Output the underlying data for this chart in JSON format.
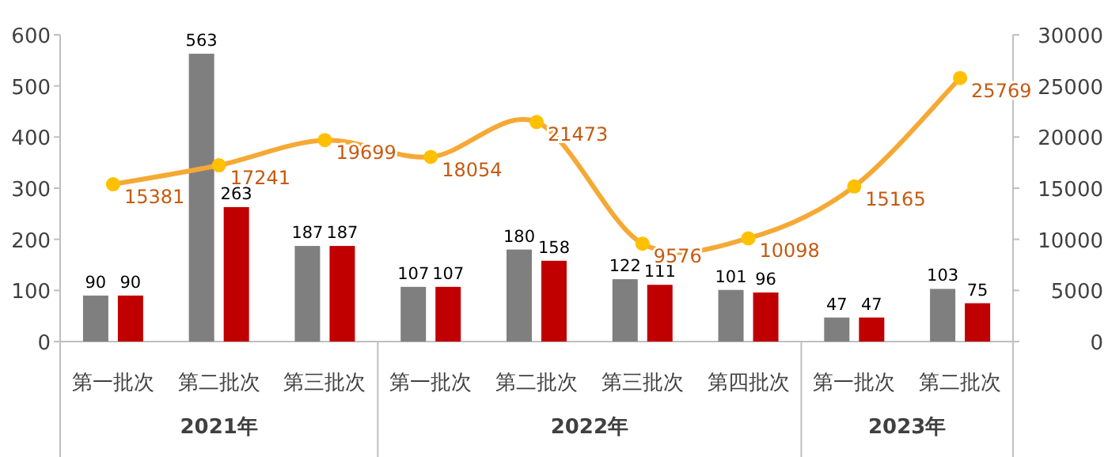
{
  "chart_data": {
    "type": "bar",
    "categories": [
      "第一批次",
      "第二批次",
      "第三批次",
      "第一批次",
      "第二批次",
      "第三批次",
      "第四批次",
      "第一批次",
      "第二批次"
    ],
    "series": [
      {
        "color": "#7f7f7f",
        "values": [
          90,
          563,
          187,
          107,
          180,
          122,
          101,
          47,
          103
        ]
      },
      {
        "color": "#c00000",
        "values": [
          90,
          263,
          187,
          107,
          158,
          111,
          96,
          47,
          75
        ]
      },
      {
        "type": "line",
        "axis": "y2",
        "color": "#f5a935",
        "values": [
          15381,
          17241,
          19699,
          18054,
          21473,
          9576,
          10098,
          15165,
          25769
        ]
      }
    ],
    "ylim": [
      0,
      600
    ],
    "yticks": [
      0,
      100,
      200,
      300,
      400,
      500,
      600
    ],
    "y2lim": [
      0,
      30000
    ],
    "y2ticks": [
      0,
      5000,
      10000,
      15000,
      20000,
      25000,
      30000
    ],
    "data_labels": true,
    "marker": "circle",
    "annotations": [
      "2021年",
      "2022年",
      "2023年"
    ]
  }
}
